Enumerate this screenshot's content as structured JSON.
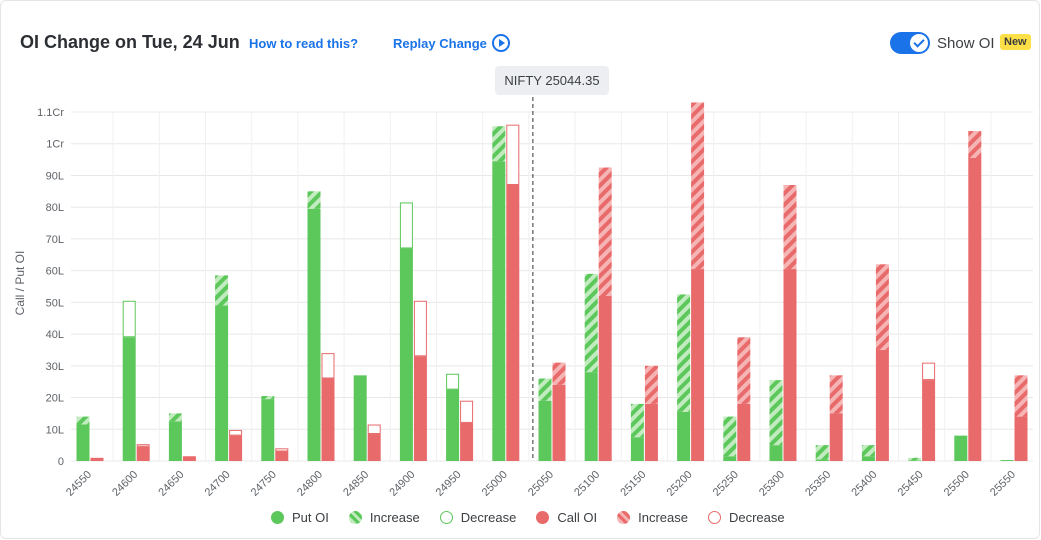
{
  "header": {
    "title": "OI Change on Tue, 24 Jun",
    "how_to_read": "How to read this?",
    "replay": "Replay Change",
    "show_oi_label": "Show OI",
    "new_badge": "New"
  },
  "spot_label": "NIFTY 25044.35",
  "colors": {
    "put": "#5cc75a",
    "call": "#e86a6a",
    "put_stripe": "#c2ecc0",
    "call_stripe": "#f5b5b5",
    "grid": "#e8e8e8"
  },
  "chart_data": {
    "type": "bar",
    "ylabel": "Call / Put OI",
    "ylim": [
      0,
      110
    ],
    "y_unit_note": "values in Lakh (1Cr = 100L)",
    "yticks": [
      {
        "value": 0,
        "label": "0"
      },
      {
        "value": 10,
        "label": "10L"
      },
      {
        "value": 20,
        "label": "20L"
      },
      {
        "value": 30,
        "label": "30L"
      },
      {
        "value": 40,
        "label": "40L"
      },
      {
        "value": 50,
        "label": "50L"
      },
      {
        "value": 60,
        "label": "60L"
      },
      {
        "value": 70,
        "label": "70L"
      },
      {
        "value": 80,
        "label": "80L"
      },
      {
        "value": 90,
        "label": "90L"
      },
      {
        "value": 100,
        "label": "1Cr"
      },
      {
        "value": 110,
        "label": "1.1Cr"
      }
    ],
    "categories": [
      "24550",
      "24600",
      "24650",
      "24700",
      "24750",
      "24800",
      "24850",
      "24900",
      "24950",
      "25000",
      "25050",
      "25100",
      "25150",
      "25200",
      "25250",
      "25300",
      "25350",
      "25400",
      "25450",
      "25500",
      "25550"
    ],
    "spot_between": [
      "25000",
      "25050"
    ],
    "put": [
      {
        "base": 11.5,
        "increase": 2.5,
        "decrease": 0
      },
      {
        "base": 39,
        "increase": 0,
        "decrease": 11.5
      },
      {
        "base": 12.5,
        "increase": 2.5,
        "decrease": 0
      },
      {
        "base": 49,
        "increase": 9.5,
        "decrease": 0
      },
      {
        "base": 19.5,
        "increase": 1,
        "decrease": 0
      },
      {
        "base": 79.5,
        "increase": 5.5,
        "decrease": 0
      },
      {
        "base": 27,
        "increase": 0,
        "decrease": 0
      },
      {
        "base": 67,
        "increase": 0,
        "decrease": 14.5
      },
      {
        "base": 22.5,
        "increase": 0,
        "decrease": 5
      },
      {
        "base": 94.5,
        "increase": 11,
        "decrease": 0
      },
      {
        "base": 19,
        "increase": 7,
        "decrease": 0
      },
      {
        "base": 28,
        "increase": 31,
        "decrease": 0
      },
      {
        "base": 7.5,
        "increase": 10.5,
        "decrease": 0
      },
      {
        "base": 15.5,
        "increase": 37,
        "decrease": 0
      },
      {
        "base": 1.5,
        "increase": 12.5,
        "decrease": 0
      },
      {
        "base": 5,
        "increase": 20.5,
        "decrease": 0
      },
      {
        "base": 0.5,
        "increase": 4.5,
        "decrease": 0
      },
      {
        "base": 1.5,
        "increase": 3.5,
        "decrease": 0
      },
      {
        "base": 0.2,
        "increase": 0.8,
        "decrease": 0
      },
      {
        "base": 8,
        "increase": 0,
        "decrease": 0
      },
      {
        "base": 0.3,
        "increase": 0,
        "decrease": 0
      }
    ],
    "call": [
      {
        "base": 1,
        "increase": 0,
        "decrease": 0
      },
      {
        "base": 4.5,
        "increase": 0,
        "decrease": 0.8
      },
      {
        "base": 1.5,
        "increase": 0,
        "decrease": 0
      },
      {
        "base": 8,
        "increase": 0,
        "decrease": 1.8
      },
      {
        "base": 3,
        "increase": 0,
        "decrease": 1
      },
      {
        "base": 26,
        "increase": 0,
        "decrease": 8
      },
      {
        "base": 8.5,
        "increase": 0,
        "decrease": 3
      },
      {
        "base": 33,
        "increase": 0,
        "decrease": 17.5
      },
      {
        "base": 12,
        "increase": 0,
        "decrease": 7
      },
      {
        "base": 87,
        "increase": 0,
        "decrease": 19
      },
      {
        "base": 24,
        "increase": 7,
        "decrease": 0
      },
      {
        "base": 52,
        "increase": 40.5,
        "decrease": 0
      },
      {
        "base": 18,
        "increase": 12,
        "decrease": 0
      },
      {
        "base": 60.5,
        "increase": 52.5,
        "decrease": 0
      },
      {
        "base": 18,
        "increase": 21,
        "decrease": 0
      },
      {
        "base": 60.5,
        "increase": 26.5,
        "decrease": 0
      },
      {
        "base": 15,
        "increase": 12,
        "decrease": 0
      },
      {
        "base": 35,
        "increase": 27,
        "decrease": 0
      },
      {
        "base": 25.5,
        "increase": 0,
        "decrease": 5.5
      },
      {
        "base": 95.5,
        "increase": 8.5,
        "decrease": 0
      },
      {
        "base": 14,
        "increase": 13,
        "decrease": 0
      }
    ],
    "legend": [
      {
        "label": "Put OI",
        "kind": "put-solid"
      },
      {
        "label": "Increase",
        "kind": "put-increase"
      },
      {
        "label": "Decrease",
        "kind": "put-decrease"
      },
      {
        "label": "Call OI",
        "kind": "call-solid"
      },
      {
        "label": "Increase",
        "kind": "call-increase"
      },
      {
        "label": "Decrease",
        "kind": "call-decrease"
      }
    ],
    "legend_position": "bottom"
  }
}
